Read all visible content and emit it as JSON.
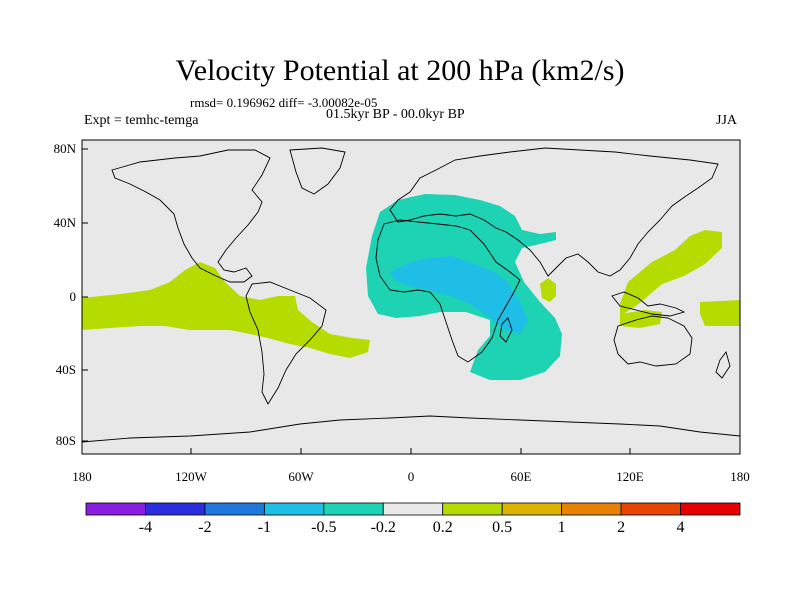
{
  "title": "Velocity Potential at 200 hPa (km2/s)",
  "stats": "rmsd= 0.196962 diff= -3.00082e-05",
  "period": "01.5kyr BP - 00.0kyr BP",
  "experiment": "Expt = temhc-temga",
  "season": "JJA",
  "map": {
    "x_ticks": [
      "180",
      "120W",
      "60W",
      "0",
      "60E",
      "120E",
      "180"
    ],
    "y_ticks": [
      "80N",
      "40N",
      "0",
      "40S",
      "80S"
    ],
    "ocean_color": "#e8e8e8",
    "coast_color": "#000000"
  },
  "colorbar": {
    "colors": [
      "#8a1ee0",
      "#2d2de0",
      "#1e78dc",
      "#1ebee6",
      "#1ed2b4",
      "#e8e8e8",
      "#b4dc00",
      "#dcb400",
      "#e68200",
      "#e64600",
      "#e60000"
    ],
    "labels": [
      "-4",
      "-2",
      "-1",
      "-0.5",
      "-0.2",
      "0.2",
      "0.5",
      "1",
      "2",
      "4"
    ]
  },
  "contours": {
    "positive_fill": "#b4dc00",
    "negative_fill": "#1ed2b4",
    "strong_negative_fill": "#1ebee6"
  }
}
